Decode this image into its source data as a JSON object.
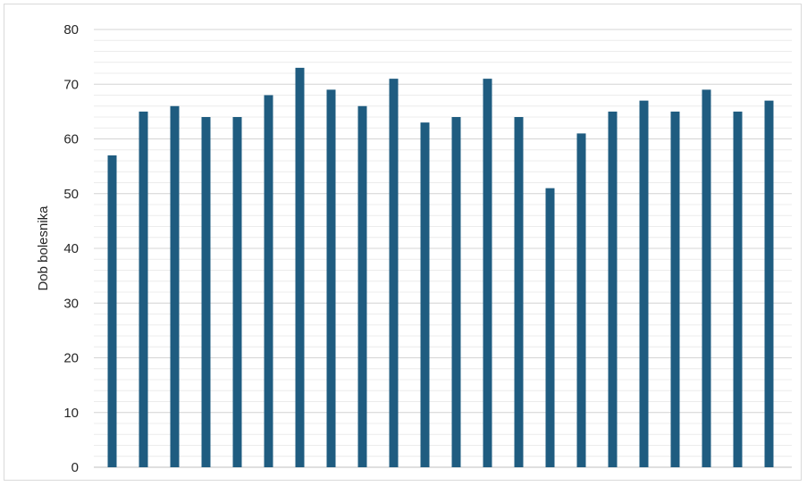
{
  "chart_data": {
    "type": "bar",
    "ylabel": "Dob bolesnika",
    "xlabel": "",
    "ylim": [
      0,
      80
    ],
    "yticks": [
      0,
      10,
      20,
      30,
      40,
      50,
      60,
      70,
      80
    ],
    "minor_grid_step": 2,
    "grid": true,
    "bar_color": "#1f5c80",
    "values": [
      57,
      65,
      66,
      64,
      64,
      68,
      73,
      69,
      66,
      71,
      63,
      64,
      71,
      64,
      51,
      61,
      65,
      67,
      65,
      69,
      65,
      67
    ]
  }
}
